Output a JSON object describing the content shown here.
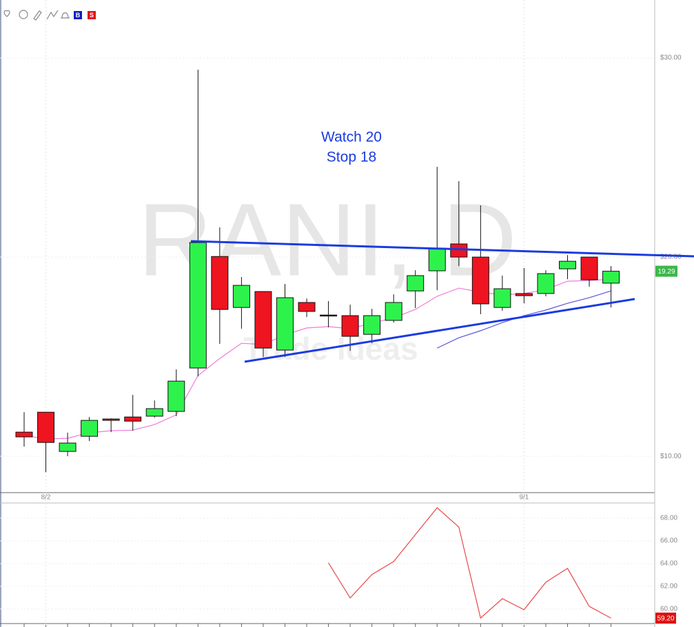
{
  "toolbar": {
    "buy": "B",
    "sell": "S"
  },
  "watermark": "RANI, D",
  "logo": "Trade Ideas",
  "annotation": [
    "Watch 20",
    "Stop 18"
  ],
  "chart_data": [
    {
      "type": "candlestick",
      "categories": [
        null,
        "8/2",
        null,
        null,
        null,
        null,
        null,
        null,
        null,
        null,
        null,
        null,
        null,
        null,
        null,
        null,
        null,
        null,
        null,
        null,
        null,
        null,
        null,
        "9/1",
        null,
        null,
        null,
        null
      ],
      "open": [
        11.21,
        12.21,
        10.24,
        11.0,
        11.87,
        11.97,
        12.01,
        12.25,
        14.43,
        20.03,
        17.47,
        18.27,
        15.33,
        17.72,
        17.09,
        17.06,
        16.12,
        16.82,
        18.3,
        19.31,
        20.66,
        20.0,
        17.47,
        18.17,
        18.17,
        19.41,
        20.0,
        18.69
      ],
      "high": [
        12.21,
        12.21,
        11.18,
        11.97,
        11.9,
        13.08,
        12.8,
        14.36,
        29.41,
        21.49,
        19.0,
        18.27,
        18.65,
        17.92,
        17.79,
        17.61,
        17.4,
        18.13,
        19.34,
        24.53,
        23.81,
        22.6,
        19.07,
        19.45,
        19.34,
        20.1,
        20.0,
        19.55
      ],
      "low": [
        10.48,
        9.2,
        10.0,
        10.76,
        11.21,
        11.28,
        11.94,
        12.01,
        14.01,
        15.64,
        16.4,
        14.98,
        14.98,
        16.99,
        16.47,
        15.29,
        15.67,
        16.71,
        17.44,
        18.34,
        19.55,
        17.13,
        17.3,
        17.68,
        18.03,
        18.89,
        18.51,
        17.47
      ],
      "close": [
        10.97,
        10.69,
        10.66,
        11.8,
        11.8,
        11.76,
        12.39,
        13.77,
        20.73,
        17.37,
        18.58,
        15.43,
        17.96,
        17.27,
        17.09,
        16.02,
        17.06,
        17.72,
        19.07,
        20.45,
        20.0,
        17.65,
        18.41,
        18.06,
        19.17,
        19.79,
        18.86,
        19.29
      ],
      "up_color": "#2ef24c",
      "down_color": "#ee1420",
      "flat_color": "#222222",
      "lines": [
        {
          "color": "#f07ad8",
          "values": [
            11.04,
            10.87,
            10.9,
            11.18,
            11.28,
            11.31,
            11.59,
            12.08,
            14.05,
            14.91,
            15.67,
            15.61,
            16.09,
            16.44,
            16.51,
            16.4,
            16.68,
            16.95,
            17.37,
            18.03,
            18.44,
            18.24,
            18.1,
            18.17,
            18.37,
            18.79,
            18.82,
            18.89
          ]
        },
        {
          "color": "#5a55d8",
          "values": [
            null,
            null,
            null,
            null,
            null,
            null,
            null,
            null,
            null,
            null,
            null,
            null,
            null,
            null,
            null,
            null,
            null,
            null,
            null,
            15.43,
            15.95,
            16.3,
            16.71,
            17.06,
            17.34,
            17.68,
            17.96,
            18.3
          ]
        }
      ],
      "last_price": 19.29,
      "last_price_color": "#3cb84a",
      "ylim": [
        8.17,
        32.91
      ],
      "yticks": [
        {
          "value": 10,
          "label": "$10.00"
        },
        {
          "value": 20,
          "label": "$20.00"
        },
        {
          "value": 30,
          "label": "$30.00"
        }
      ],
      "grid": true
    },
    {
      "type": "line",
      "color": "#e84848",
      "values": [
        null,
        null,
        null,
        null,
        null,
        null,
        null,
        null,
        null,
        null,
        null,
        null,
        null,
        null,
        64.06,
        60.97,
        63.03,
        64.18,
        66.55,
        68.91,
        67.21,
        59.21,
        60.91,
        59.94,
        62.36,
        63.58,
        60.24,
        59.2
      ],
      "last_value": {
        "value": 59.2,
        "label": "59.20"
      },
      "last_value_color": "#e01010",
      "ylim": [
        58.42,
        69.33
      ],
      "yticks": [
        {
          "value": 60,
          "label": "60.00"
        },
        {
          "value": 62,
          "label": "62.00"
        },
        {
          "value": 64,
          "label": "64.00"
        },
        {
          "value": 66,
          "label": "66.00"
        },
        {
          "value": 68,
          "label": "68.00"
        }
      ],
      "grid": true
    }
  ]
}
